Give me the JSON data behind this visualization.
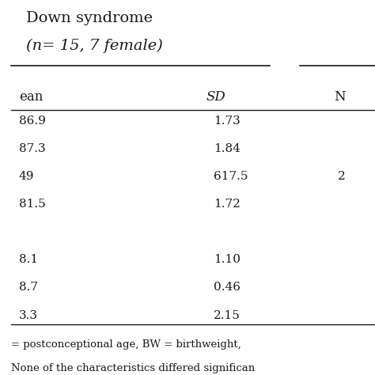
{
  "title_line1": "Down syndrome",
  "title_line2": "(n= 15, 7 female)",
  "header_row": [
    "ean",
    "SD",
    "N"
  ],
  "data_rows": [
    [
      "86.9",
      "1.73",
      ""
    ],
    [
      "87.3",
      "1.84",
      ""
    ],
    [
      "49",
      "617.5",
      "2"
    ],
    [
      "81.5",
      "1.72",
      ""
    ],
    [
      "",
      "",
      ""
    ],
    [
      "8.1",
      "1.10",
      ""
    ],
    [
      "8.7",
      "0.46",
      ""
    ],
    [
      "3.3",
      "2.15",
      ""
    ]
  ],
  "footer_lines": [
    "= postconceptional age, BW = birthweight,",
    "None of the characteristics differed significan"
  ],
  "bg_color": "#ffffff",
  "text_color": "#1a1a1a",
  "font_size": 11,
  "title_font_size": 14,
  "header_font_size": 12,
  "footer_font_size": 9.5
}
